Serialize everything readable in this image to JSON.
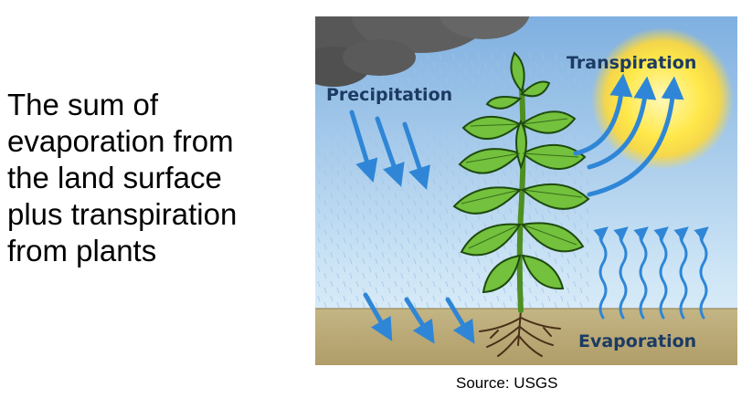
{
  "caption": {
    "lines": [
      "The sum of",
      "evaporation from",
      "the land surface",
      "plus transpiration",
      "from plants"
    ]
  },
  "diagram": {
    "labels": {
      "precipitation": "Precipitation",
      "transpiration": "Transpiration",
      "evaporation": "Evaporation"
    },
    "icons": [
      "rain-cloud-icon",
      "sun-icon",
      "plant-icon",
      "roots-icon"
    ],
    "colors": {
      "sky_top": "#7fb0e0",
      "sky_bottom": "#d8ecf8",
      "ground": "#b8a878",
      "arrow": "#2f86d6",
      "leaf": "#6fbf3a",
      "leaf_outline": "#1e4a10",
      "sun": "#ffe34a",
      "label": "#1c3b63"
    }
  },
  "source": "Source: USGS"
}
